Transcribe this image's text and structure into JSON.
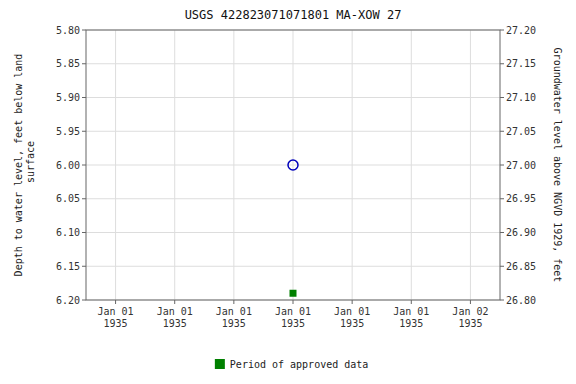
{
  "chart_data": {
    "type": "scatter",
    "title": "USGS 422823071071801 MA-XOW   27",
    "ylabel": "Depth to water level, feet below land\n surface",
    "y2label": "Groundwater level above NGVD 1929, feet",
    "categories": [
      "Jan 01\n1935",
      "Jan 01\n1935",
      "Jan 01\n1935",
      "Jan 01\n1935",
      "Jan 01\n1935",
      "Jan 01\n1935",
      "Jan 02\n1935"
    ],
    "ylim": [
      6.2,
      5.8
    ],
    "yticks": [
      {
        "value": 5.8,
        "label": "5.80"
      },
      {
        "value": 5.85,
        "label": "5.85"
      },
      {
        "value": 5.9,
        "label": "5.90"
      },
      {
        "value": 5.95,
        "label": "5.95"
      },
      {
        "value": 6.0,
        "label": "6.00"
      },
      {
        "value": 6.05,
        "label": "6.05"
      },
      {
        "value": 6.1,
        "label": "6.10"
      },
      {
        "value": 6.15,
        "label": "6.15"
      },
      {
        "value": 6.2,
        "label": "6.20"
      }
    ],
    "y2lim": [
      26.8,
      27.2
    ],
    "y2ticks": [
      {
        "value": 27.2,
        "label": "27.20"
      },
      {
        "value": 27.15,
        "label": "27.15"
      },
      {
        "value": 27.1,
        "label": "27.10"
      },
      {
        "value": 27.05,
        "label": "27.05"
      },
      {
        "value": 27.0,
        "label": "27.00"
      },
      {
        "value": 26.95,
        "label": "26.95"
      },
      {
        "value": 26.9,
        "label": "26.90"
      },
      {
        "value": 26.85,
        "label": "26.85"
      },
      {
        "value": 26.8,
        "label": "26.80"
      }
    ],
    "grid": true,
    "legend": "bottom",
    "series": [
      {
        "color": "#0000bb",
        "marker": "circle-open",
        "values": [
          null,
          null,
          null,
          6.0,
          null,
          null,
          null
        ]
      },
      {
        "name": "Period of approved data",
        "color": "#008000",
        "marker": "square",
        "values": [
          null,
          null,
          null,
          6.19,
          null,
          null,
          null
        ]
      }
    ]
  }
}
